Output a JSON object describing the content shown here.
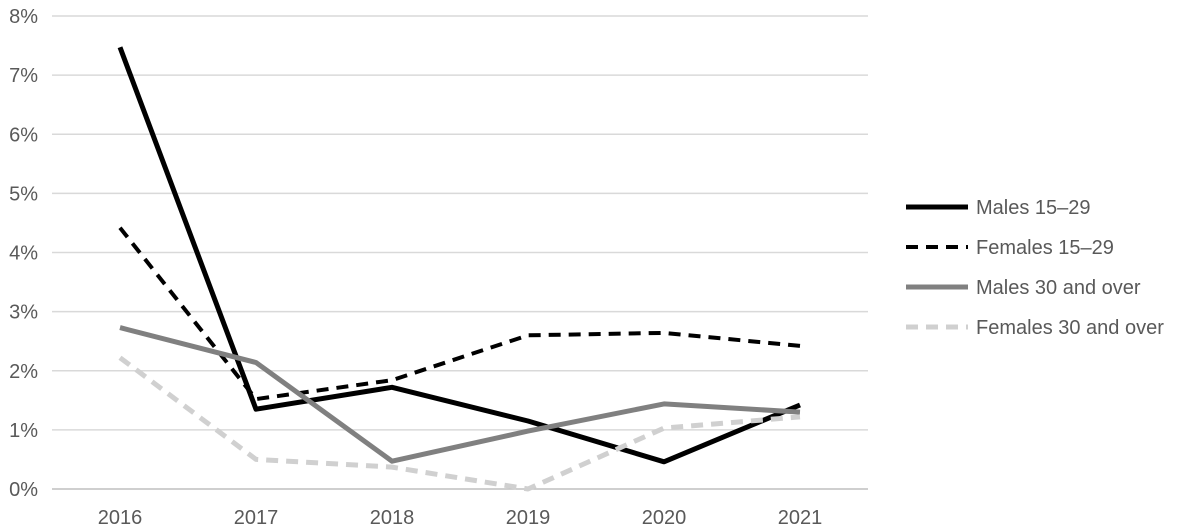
{
  "chart_data": {
    "type": "line",
    "title": "",
    "xlabel": "",
    "ylabel": "",
    "categories": [
      "2016",
      "2017",
      "2018",
      "2019",
      "2020",
      "2021"
    ],
    "y_tick_labels": [
      "0%",
      "1%",
      "2%",
      "3%",
      "4%",
      "5%",
      "6%",
      "7%",
      "8%"
    ],
    "ylim": [
      0,
      8
    ],
    "grid": "horizontal",
    "legend_position": "right",
    "series": [
      {
        "name": "Males 15–29",
        "values": [
          7.47,
          1.35,
          1.72,
          1.15,
          0.46,
          1.42
        ],
        "color": "#000000",
        "dash": "solid",
        "width": 5
      },
      {
        "name": "Females 15–29",
        "values": [
          4.42,
          1.52,
          1.84,
          2.6,
          2.64,
          2.42
        ],
        "color": "#000000",
        "dash": "dashed",
        "width": 4
      },
      {
        "name": "Males 30 and over",
        "values": [
          2.73,
          2.14,
          0.47,
          0.98,
          1.44,
          1.3
        ],
        "color": "#808080",
        "dash": "solid",
        "width": 5
      },
      {
        "name": "Females 30 and over",
        "values": [
          2.22,
          0.5,
          0.37,
          0.0,
          1.03,
          1.22
        ],
        "color": "#d0d0d0",
        "dash": "dashed",
        "width": 5
      }
    ]
  }
}
